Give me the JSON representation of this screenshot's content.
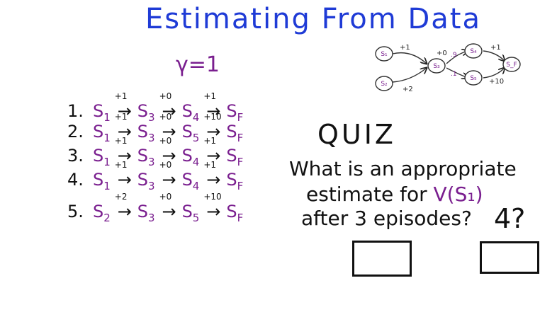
{
  "title": "Estimating From Data",
  "gamma": "γ=1",
  "episodes": [
    {
      "num": "1.",
      "steps": [
        {
          "s": "S",
          "sub": "1",
          "r": "+1"
        },
        {
          "s": "S",
          "sub": "3",
          "r": "+0"
        },
        {
          "s": "S",
          "sub": "4",
          "r": "+1"
        },
        {
          "s": "S",
          "sub": "F",
          "r": ""
        }
      ]
    },
    {
      "num": "2.",
      "steps": [
        {
          "s": "S",
          "sub": "1",
          "r": "+1"
        },
        {
          "s": "S",
          "sub": "3",
          "r": "+0"
        },
        {
          "s": "S",
          "sub": "5",
          "r": "+10"
        },
        {
          "s": "S",
          "sub": "F",
          "r": ""
        }
      ]
    },
    {
      "num": "3.",
      "steps": [
        {
          "s": "S",
          "sub": "1",
          "r": "+1"
        },
        {
          "s": "S",
          "sub": "3",
          "r": "+0"
        },
        {
          "s": "S",
          "sub": "4",
          "r": "+1"
        },
        {
          "s": "S",
          "sub": "F",
          "r": ""
        }
      ]
    },
    {
      "num": "4.",
      "steps": [
        {
          "s": "S",
          "sub": "1",
          "r": "+1"
        },
        {
          "s": "S",
          "sub": "3",
          "r": "+0"
        },
        {
          "s": "S",
          "sub": "4",
          "r": "+1"
        },
        {
          "s": "S",
          "sub": "F",
          "r": ""
        }
      ]
    },
    {
      "num": "5.",
      "steps": [
        {
          "s": "S",
          "sub": "2",
          "r": "+2"
        },
        {
          "s": "S",
          "sub": "3",
          "r": "+0"
        },
        {
          "s": "S",
          "sub": "5",
          "r": "+10"
        },
        {
          "s": "S",
          "sub": "F",
          "r": ""
        }
      ]
    }
  ],
  "graph": {
    "nodes": [
      {
        "id": "s1",
        "label": "S₁"
      },
      {
        "id": "s2",
        "label": "S₂"
      },
      {
        "id": "s3",
        "label": "S₃"
      },
      {
        "id": "s4",
        "label": "S₄"
      },
      {
        "id": "s5",
        "label": "S₅"
      },
      {
        "id": "sf",
        "label": "S_F"
      }
    ],
    "edges": [
      {
        "from": "s1",
        "to": "s3",
        "label": "+1"
      },
      {
        "from": "s2",
        "to": "s3",
        "label": "+2"
      },
      {
        "from": "s3",
        "to": "s4",
        "label": "+0"
      },
      {
        "from": "s3",
        "to": "s5",
        "label": ""
      },
      {
        "from": "s4",
        "to": "sf",
        "label": "+1"
      },
      {
        "from": "s5",
        "to": "sf",
        "label": "+10"
      }
    ],
    "branch_marks": [
      ".9",
      ".1"
    ]
  },
  "quiz": {
    "heading": "QUIZ",
    "line1": "What is an appropriate",
    "line2_pre": "estimate for ",
    "line2_v": "V(S₁)",
    "line3": "after 3 episodes?",
    "guess": "4?"
  }
}
